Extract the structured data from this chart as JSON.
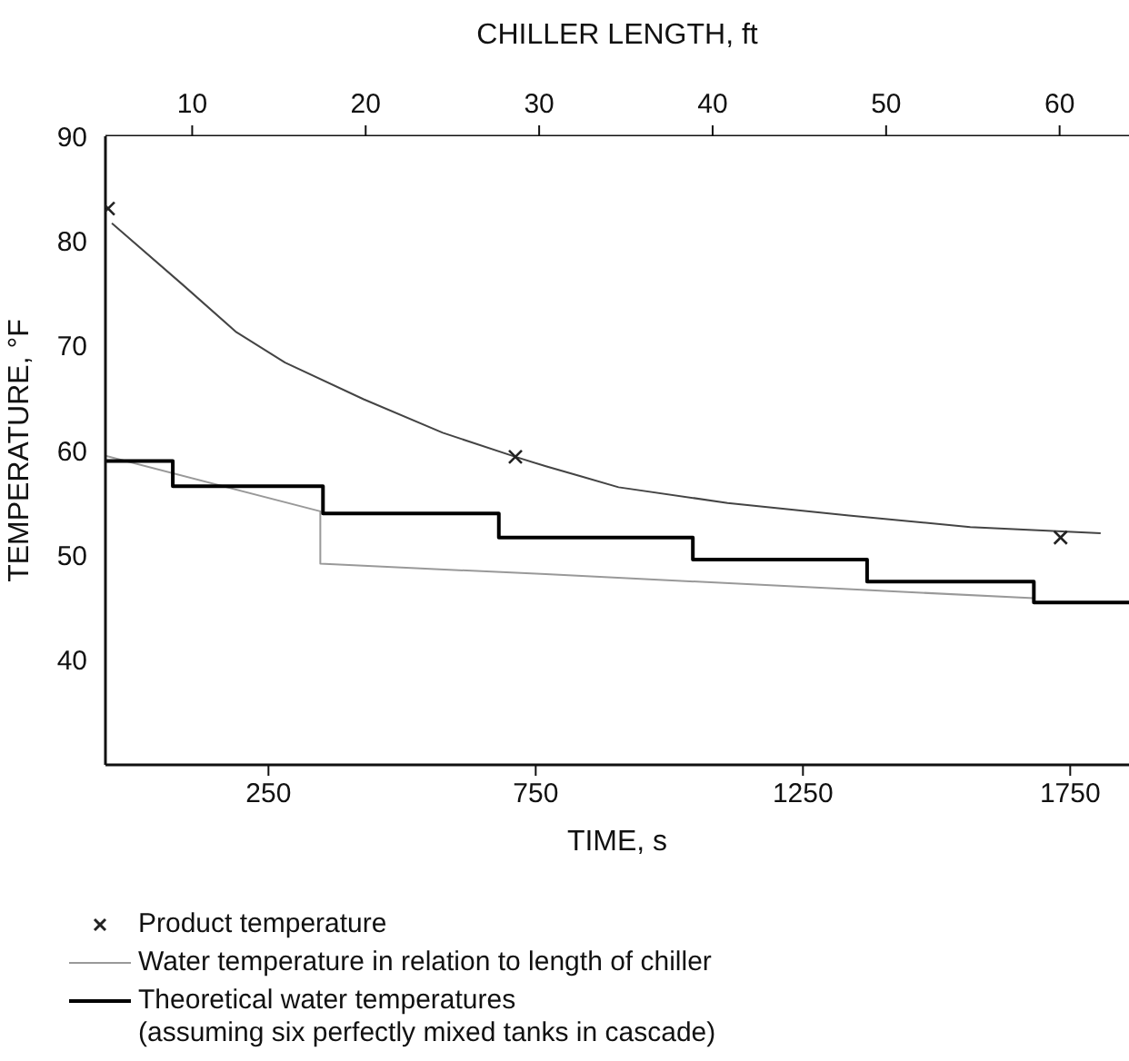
{
  "chart_data": {
    "type": "line",
    "xlabel": "TIME,  s",
    "ylabel": "TEMPERATURE, °F",
    "x2label": "CHILLER LENGTH,  ft",
    "xlim": [
      -55,
      1860
    ],
    "xticks": [
      250,
      750,
      1250,
      1750
    ],
    "x2lim": [
      5,
      64
    ],
    "x2ticks": [
      10,
      20,
      30,
      40,
      50,
      60
    ],
    "ylim": [
      30,
      90
    ],
    "yticks": [
      40,
      50,
      60,
      70,
      80,
      90
    ],
    "grid": false,
    "legend": "bottom",
    "series": [
      {
        "type": "scatter",
        "name": "Product temperature",
        "marker": "cross",
        "color": "#222222",
        "x": [
          -50,
          712,
          1732
        ],
        "values": [
          83.1,
          59.4,
          51.7
        ]
      },
      {
        "color": "#444444",
        "x": [
          -43,
          88,
          190,
          281,
          428,
          576,
          712,
          769,
          837,
          905,
          1109,
          1336,
          1563,
          1807
        ],
        "values": [
          81.7,
          75.9,
          71.3,
          68.4,
          64.9,
          61.7,
          59.4,
          58.5,
          57.5,
          56.5,
          55.0,
          53.8,
          52.7,
          52.1
        ]
      },
      {
        "name": "Water temperature in relation to length of chiller",
        "color": "#999999",
        "x": [
          -55,
          347,
          347,
          769,
          1682
        ],
        "values": [
          59.5,
          54.2,
          49.2,
          48.2,
          45.9
        ]
      },
      {
        "type": "step",
        "name": "Theoretical water temperatures\n(assuming six perfectly mixed tanks in cascade)",
        "color": "#000000",
        "x": [
          -55,
          71,
          352,
          681,
          1044,
          1370,
          1682,
          1860
        ],
        "values": [
          59.0,
          56.6,
          54.0,
          51.7,
          49.6,
          47.5,
          45.5,
          45.5
        ]
      }
    ]
  }
}
